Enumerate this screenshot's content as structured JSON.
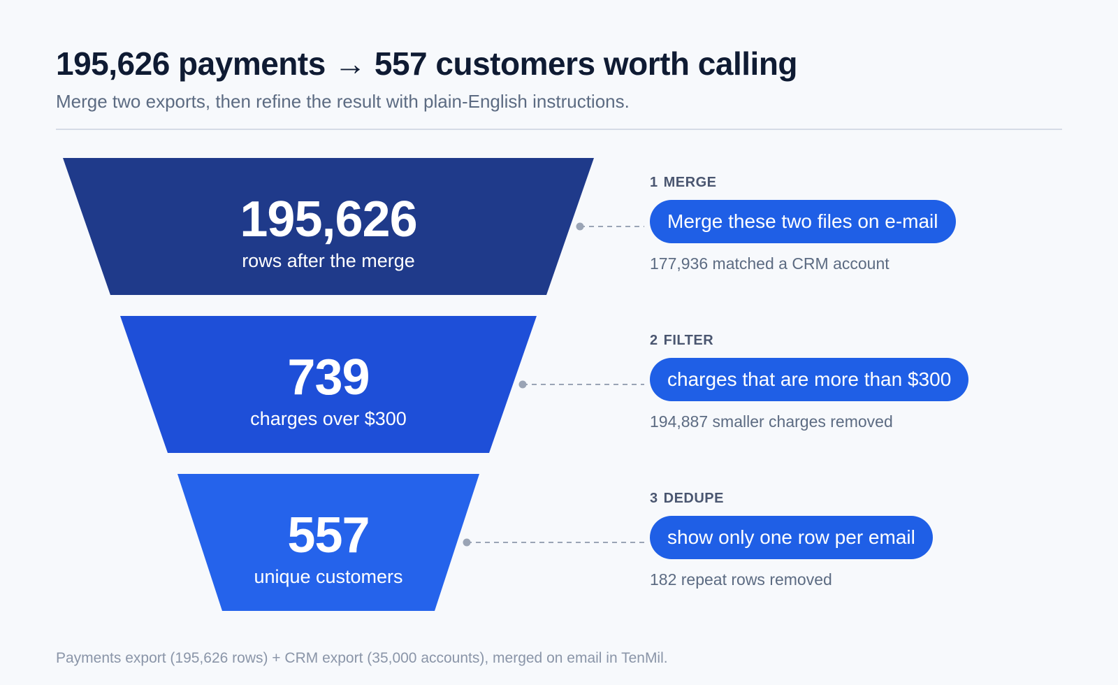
{
  "header": {
    "title": "195,626 payments → 557 customers worth calling",
    "subtitle": "Merge two exports, then refine the result with plain-English instructions."
  },
  "funnel": {
    "stages": [
      {
        "value": "195,626",
        "label": "rows after the merge",
        "color": "#1f3a8a"
      },
      {
        "value": "739",
        "label": "charges over $300",
        "color": "#1e4fd8"
      },
      {
        "value": "557",
        "label": "unique customers",
        "color": "#2563eb"
      }
    ]
  },
  "steps": [
    {
      "number": "1",
      "name": "MERGE",
      "instruction": "Merge these two files on e-mail",
      "note": "177,936 matched a CRM account"
    },
    {
      "number": "2",
      "name": "FILTER",
      "instruction": "charges that are more than $300",
      "note": "194,887 smaller charges removed"
    },
    {
      "number": "3",
      "name": "DEDUPE",
      "instruction": "show only one row per email",
      "note": "182 repeat rows removed"
    }
  ],
  "footer": "Payments export (195,626 rows) + CRM export (35,000 accounts), merged on email in TenMil.",
  "colors": {
    "pill": "#1f5fe6",
    "connector": "#9aa4b5"
  }
}
